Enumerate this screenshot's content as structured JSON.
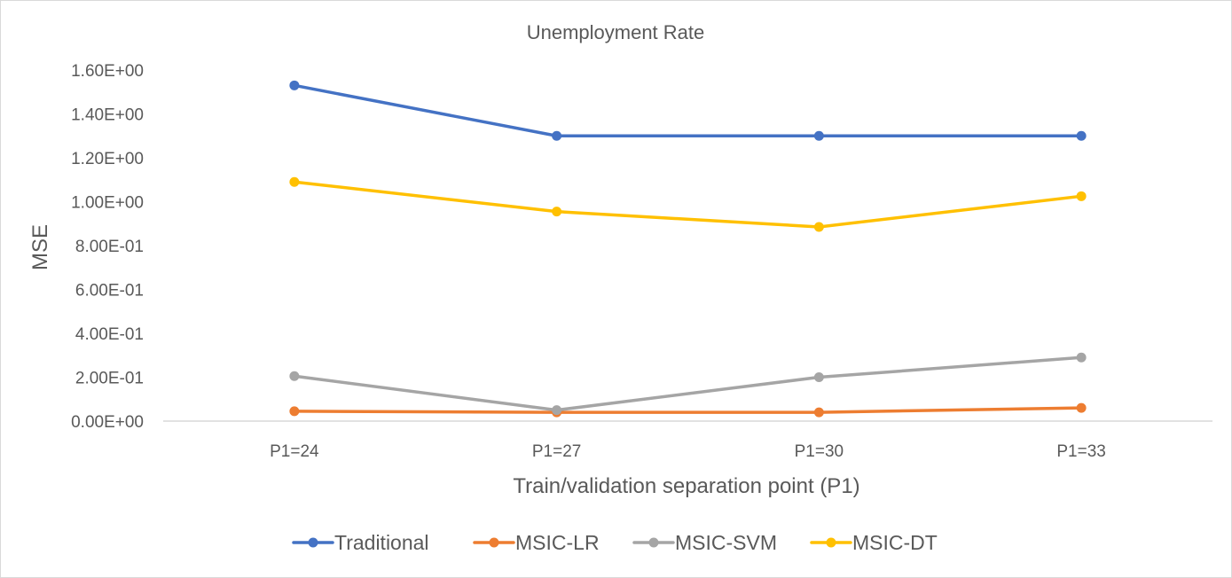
{
  "chart_data": {
    "type": "line",
    "title": "Unemployment Rate",
    "xlabel": "Train/validation separation point (P1)",
    "ylabel": "MSE",
    "categories": [
      "P1=24",
      "P1=27",
      "P1=30",
      "P1=33"
    ],
    "ylim": [
      0,
      1.6
    ],
    "yticks": [
      0,
      0.2,
      0.4,
      0.6,
      0.8,
      1.0,
      1.2,
      1.4,
      1.6
    ],
    "ytick_labels": [
      "0.00E+00",
      "2.00E-01",
      "4.00E-01",
      "6.00E-01",
      "8.00E-01",
      "1.00E+00",
      "1.20E+00",
      "1.40E+00",
      "1.60E+00"
    ],
    "grid": false,
    "legend_position": "bottom",
    "series": [
      {
        "name": "Traditional",
        "color": "#4472C4",
        "values": [
          1.53,
          1.3,
          1.3,
          1.3
        ]
      },
      {
        "name": "MSIC-LR",
        "color": "#ED7D31",
        "values": [
          0.045,
          0.04,
          0.04,
          0.06
        ]
      },
      {
        "name": "MSIC-SVM",
        "color": "#A5A5A5",
        "values": [
          0.205,
          0.05,
          0.2,
          0.29
        ]
      },
      {
        "name": "MSIC-DT",
        "color": "#FFC000",
        "values": [
          1.09,
          0.955,
          0.885,
          1.025
        ]
      }
    ]
  }
}
